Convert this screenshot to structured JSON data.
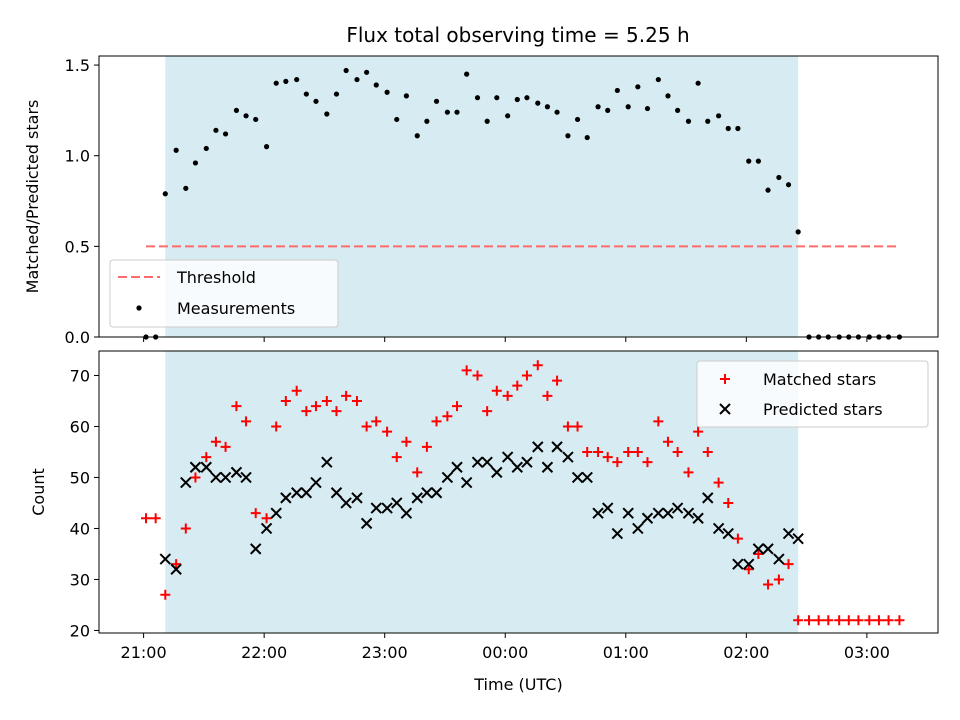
{
  "title": "Flux total observing time = 5.25 h",
  "colors": {
    "threshold": "#ff6b6b",
    "measurements": "#000000",
    "matched": "#ff0000",
    "predicted": "#000000",
    "span": "#add8e6"
  },
  "chart_data": [
    {
      "type": "scatter",
      "ylabel": "Matched/Predicted stars",
      "ylim": [
        0,
        1.55
      ],
      "yticks": [
        0.0,
        0.5,
        1.0,
        1.5
      ],
      "ytick_labels": [
        "0.0",
        "0.5",
        "1.0",
        "1.5"
      ],
      "xlim_hours": [
        20.63,
        27.59
      ],
      "span_hours": [
        21.18,
        26.43
      ],
      "legend_position": "lower-left",
      "threshold": {
        "name": "Threshold",
        "value": 0.5,
        "x_range_hours": [
          21.02,
          27.25
        ]
      },
      "series": [
        {
          "name": "Measurements",
          "x_hours": [
            21.02,
            21.1,
            21.18,
            21.27,
            21.35,
            21.43,
            21.52,
            21.6,
            21.68,
            21.77,
            21.85,
            21.93,
            22.02,
            22.1,
            22.18,
            22.27,
            22.35,
            22.43,
            22.52,
            22.6,
            22.68,
            22.77,
            22.85,
            22.93,
            23.02,
            23.1,
            23.18,
            23.27,
            23.35,
            23.43,
            23.52,
            23.6,
            23.68,
            23.77,
            23.85,
            23.93,
            24.02,
            24.1,
            24.18,
            24.27,
            24.35,
            24.43,
            24.52,
            24.6,
            24.68,
            24.77,
            24.85,
            24.93,
            25.02,
            25.1,
            25.18,
            25.27,
            25.35,
            25.43,
            25.52,
            25.6,
            25.68,
            25.77,
            25.85,
            25.93,
            26.02,
            26.1,
            26.18,
            26.27,
            26.35,
            26.43,
            26.52,
            26.6,
            26.68,
            26.77,
            26.85,
            26.93,
            27.02,
            27.1,
            27.18,
            27.27
          ],
          "y": [
            0,
            0,
            0.79,
            1.03,
            0.82,
            0.96,
            1.04,
            1.14,
            1.12,
            1.25,
            1.22,
            1.2,
            1.05,
            1.4,
            1.41,
            1.42,
            1.34,
            1.3,
            1.23,
            1.34,
            1.47,
            1.42,
            1.46,
            1.39,
            1.35,
            1.2,
            1.33,
            1.11,
            1.19,
            1.3,
            1.24,
            1.24,
            1.45,
            1.32,
            1.19,
            1.32,
            1.22,
            1.31,
            1.32,
            1.29,
            1.27,
            1.24,
            1.11,
            1.2,
            1.1,
            1.27,
            1.25,
            1.36,
            1.27,
            1.38,
            1.26,
            1.42,
            1.33,
            1.25,
            1.19,
            1.4,
            1.19,
            1.22,
            1.15,
            1.15,
            0.97,
            0.97,
            0.81,
            0.88,
            0.84,
            0.58,
            0,
            0,
            0,
            0,
            0,
            0,
            0,
            0,
            0,
            0
          ]
        }
      ]
    },
    {
      "type": "scatter",
      "ylabel": "Count",
      "xlabel": "Time (UTC)",
      "ylim": [
        19.5,
        74.8
      ],
      "yticks": [
        20,
        30,
        40,
        50,
        60,
        70
      ],
      "ytick_labels": [
        "20",
        "30",
        "40",
        "50",
        "60",
        "70"
      ],
      "xlim_hours": [
        20.63,
        27.59
      ],
      "xticks_hours": [
        21,
        22,
        23,
        24,
        25,
        26,
        27
      ],
      "xtick_labels": [
        "21:00",
        "22:00",
        "23:00",
        "00:00",
        "01:00",
        "02:00",
        "03:00"
      ],
      "span_hours": [
        21.18,
        26.43
      ],
      "legend_position": "top-right",
      "series": [
        {
          "name": "Matched stars",
          "x_hours": [
            21.02,
            21.1,
            21.18,
            21.27,
            21.35,
            21.43,
            21.52,
            21.6,
            21.68,
            21.77,
            21.85,
            21.93,
            22.02,
            22.1,
            22.18,
            22.27,
            22.35,
            22.43,
            22.52,
            22.6,
            22.68,
            22.77,
            22.85,
            22.93,
            23.02,
            23.1,
            23.18,
            23.27,
            23.35,
            23.43,
            23.52,
            23.6,
            23.68,
            23.77,
            23.85,
            23.93,
            24.02,
            24.1,
            24.18,
            24.27,
            24.35,
            24.43,
            24.52,
            24.6,
            24.68,
            24.77,
            24.85,
            24.93,
            25.02,
            25.1,
            25.18,
            25.27,
            25.35,
            25.43,
            25.52,
            25.6,
            25.68,
            25.77,
            25.85,
            25.93,
            26.02,
            26.1,
            26.18,
            26.27,
            26.35,
            26.43,
            26.52,
            26.6,
            26.68,
            26.77,
            26.85,
            26.93,
            27.02,
            27.1,
            27.18,
            27.27
          ],
          "y": [
            42,
            42,
            27,
            33,
            40,
            50,
            54,
            57,
            56,
            64,
            61,
            43,
            42,
            60,
            65,
            67,
            63,
            64,
            65,
            63,
            66,
            65,
            60,
            61,
            59,
            54,
            57,
            51,
            56,
            61,
            62,
            64,
            71,
            70,
            63,
            67,
            66,
            68,
            70,
            72,
            66,
            69,
            60,
            60,
            55,
            55,
            54,
            53,
            55,
            55,
            53,
            61,
            57,
            55,
            51,
            59,
            55,
            49,
            45,
            38,
            32,
            35,
            29,
            30,
            33,
            22,
            22,
            22,
            22,
            22,
            22,
            22,
            22,
            22,
            22,
            22
          ]
        },
        {
          "name": "Predicted stars",
          "x_hours": [
            21.18,
            21.27,
            21.35,
            21.43,
            21.52,
            21.6,
            21.68,
            21.77,
            21.85,
            21.93,
            22.02,
            22.1,
            22.18,
            22.27,
            22.35,
            22.43,
            22.52,
            22.6,
            22.68,
            22.77,
            22.85,
            22.93,
            23.02,
            23.1,
            23.18,
            23.27,
            23.35,
            23.43,
            23.52,
            23.6,
            23.68,
            23.77,
            23.85,
            23.93,
            24.02,
            24.1,
            24.18,
            24.27,
            24.35,
            24.43,
            24.52,
            24.6,
            24.68,
            24.77,
            24.85,
            24.93,
            25.02,
            25.1,
            25.18,
            25.27,
            25.35,
            25.43,
            25.52,
            25.6,
            25.68,
            25.77,
            25.85,
            25.93,
            26.02,
            26.1,
            26.18,
            26.27,
            26.35,
            26.43
          ],
          "y": [
            34,
            32,
            49,
            52,
            52,
            50,
            50,
            51,
            50,
            36,
            40,
            43,
            46,
            47,
            47,
            49,
            53,
            47,
            45,
            46,
            41,
            44,
            44,
            45,
            43,
            46,
            47,
            47,
            50,
            52,
            49,
            53,
            53,
            51,
            54,
            52,
            53,
            56,
            52,
            56,
            54,
            50,
            50,
            43,
            44,
            39,
            43,
            40,
            42,
            43,
            43,
            44,
            43,
            42,
            46,
            40,
            39,
            33,
            33,
            36,
            36,
            34,
            39,
            38
          ]
        }
      ]
    }
  ]
}
